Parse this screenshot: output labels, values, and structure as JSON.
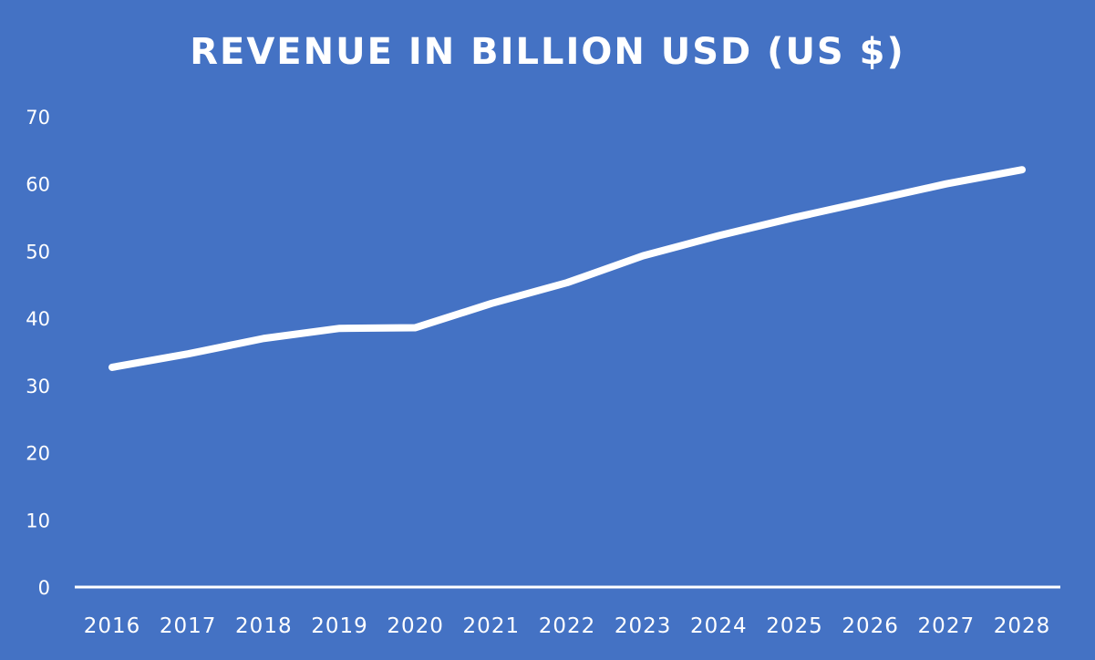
{
  "chart_data": {
    "type": "line",
    "title": "REVENUE IN BILLION USD (US $)",
    "xlabel": "",
    "ylabel": "",
    "categories": [
      "2016",
      "2017",
      "2018",
      "2019",
      "2020",
      "2021",
      "2022",
      "2023",
      "2024",
      "2025",
      "2026",
      "2027",
      "2028"
    ],
    "series": [
      {
        "values": [
          32.7,
          34.7,
          37.0,
          38.5,
          38.6,
          42.2,
          45.3,
          49.3,
          52.3,
          55.0,
          57.5,
          60.0,
          62.1
        ]
      }
    ],
    "ylim": [
      0,
      70
    ],
    "yticks": [
      0,
      10,
      20,
      30,
      40,
      50,
      60,
      70
    ],
    "drop_lines": true,
    "grid": false,
    "legend": "none",
    "colors": {
      "background": "#4472c4",
      "line": "#ffffff",
      "text": "#ffffff",
      "axis": "#ffffff"
    }
  }
}
